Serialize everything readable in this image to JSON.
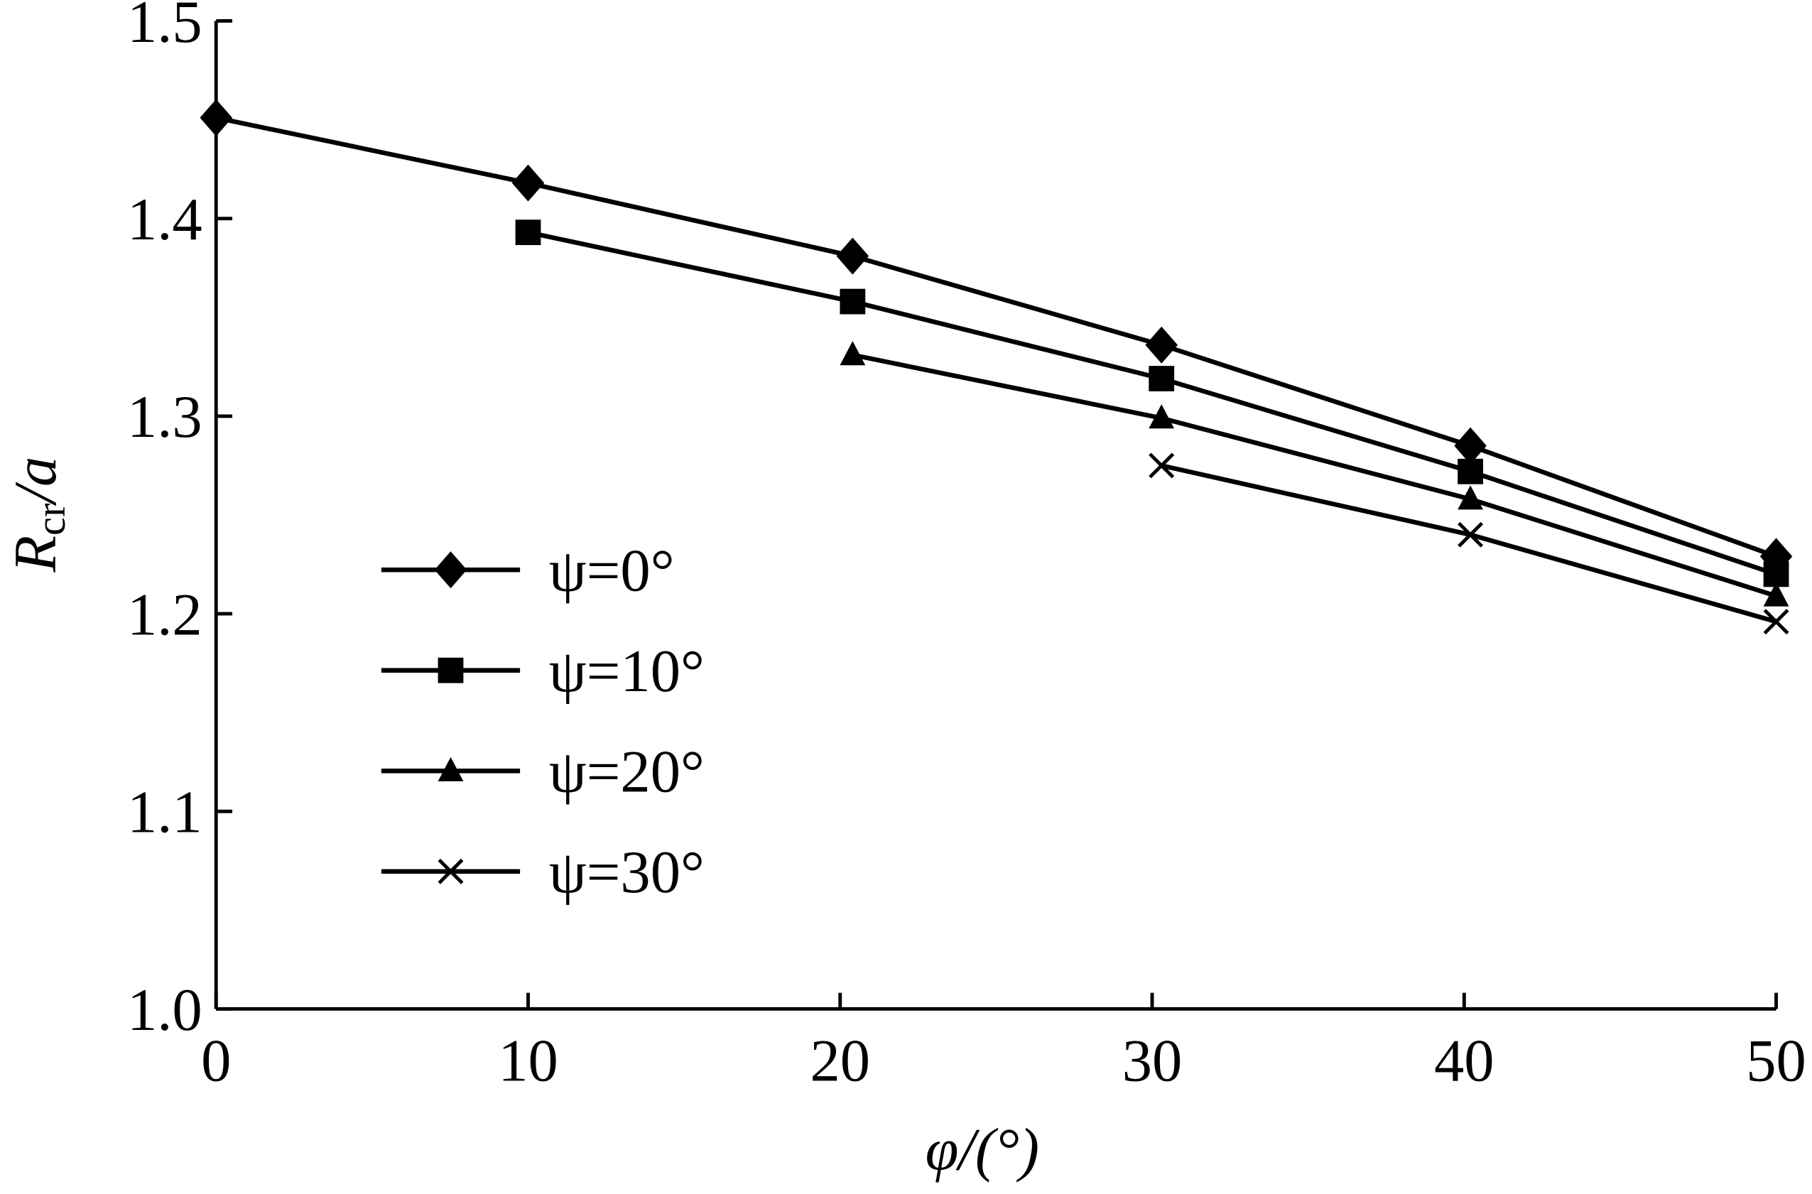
{
  "chart_data": {
    "type": "line",
    "xlabel": "φ/(°)",
    "ylabel": {
      "main": "R",
      "sub": "cr",
      "rest": "/a"
    },
    "x": [
      0,
      10,
      20.4,
      30.3,
      40.2,
      50
    ],
    "series": [
      {
        "name": "ψ=0°",
        "color": "#000000",
        "marker": "diamond",
        "values": [
          1.451,
          1.418,
          1.381,
          1.336,
          1.285,
          1.229
        ]
      },
      {
        "name": "ψ=10°",
        "color": "#000000",
        "marker": "square",
        "values": [
          null,
          1.393,
          1.358,
          1.319,
          1.272,
          1.22
        ]
      },
      {
        "name": "ψ=20°",
        "color": "#000000",
        "marker": "triangle",
        "values": [
          null,
          null,
          1.331,
          1.299,
          1.258,
          1.209
        ]
      },
      {
        "name": "ψ=30°",
        "color": "#000000",
        "marker": "x",
        "values": [
          null,
          null,
          null,
          1.275,
          1.24,
          1.196
        ]
      }
    ],
    "xlim": [
      0,
      50
    ],
    "xticks": [
      0,
      10,
      20,
      30,
      40,
      50
    ],
    "ylim": [
      1.0,
      1.5
    ],
    "yticks": [
      {
        "value": 1,
        "label": "1.0"
      },
      1.1,
      1.2,
      1.3,
      1.4,
      1.5
    ],
    "legend": "lower left",
    "grid": false
  }
}
